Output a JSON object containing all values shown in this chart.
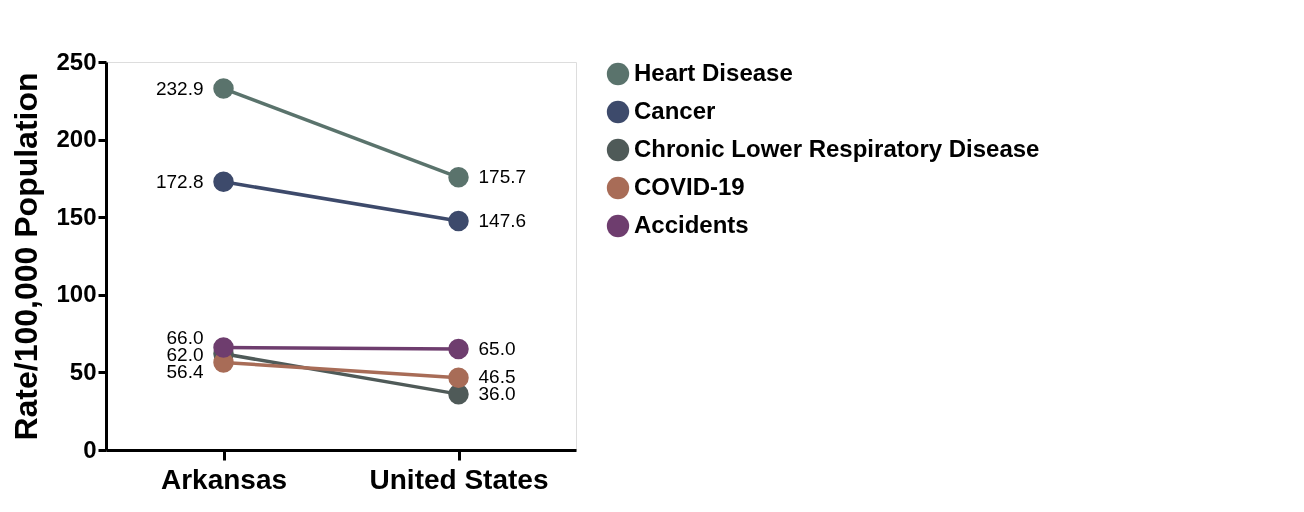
{
  "chart_data": {
    "type": "line",
    "ylabel": "Rate/100,000 Population",
    "categories": [
      "Arkansas",
      "United States"
    ],
    "ylim": [
      0,
      250
    ],
    "yticks": [
      0,
      50,
      100,
      150,
      200,
      250
    ],
    "grid": false,
    "legend": "right",
    "marker": "circle",
    "line_style": "solid",
    "series": [
      {
        "name": "Heart Disease",
        "color": "#5a736c",
        "values": [
          232.9,
          175.7
        ],
        "value_labels": [
          "232.9",
          "175.7"
        ]
      },
      {
        "name": "Cancer",
        "color": "#3d4a6b",
        "values": [
          172.8,
          147.6
        ],
        "value_labels": [
          "172.8",
          "147.6"
        ]
      },
      {
        "name": "Chronic Lower Respiratory Disease",
        "color": "#4f5a58",
        "values": [
          62.0,
          36.0
        ],
        "value_labels": [
          "62.0",
          "36.0"
        ]
      },
      {
        "name": "COVID-19",
        "color": "#a86c57",
        "values": [
          56.4,
          46.5
        ],
        "value_labels": [
          "56.4",
          "46.5"
        ]
      },
      {
        "name": " Accidents",
        "color": "#6e3d6e",
        "values": [
          66.0,
          65.0
        ],
        "value_labels": [
          "66.0",
          "65.0"
        ]
      }
    ]
  }
}
